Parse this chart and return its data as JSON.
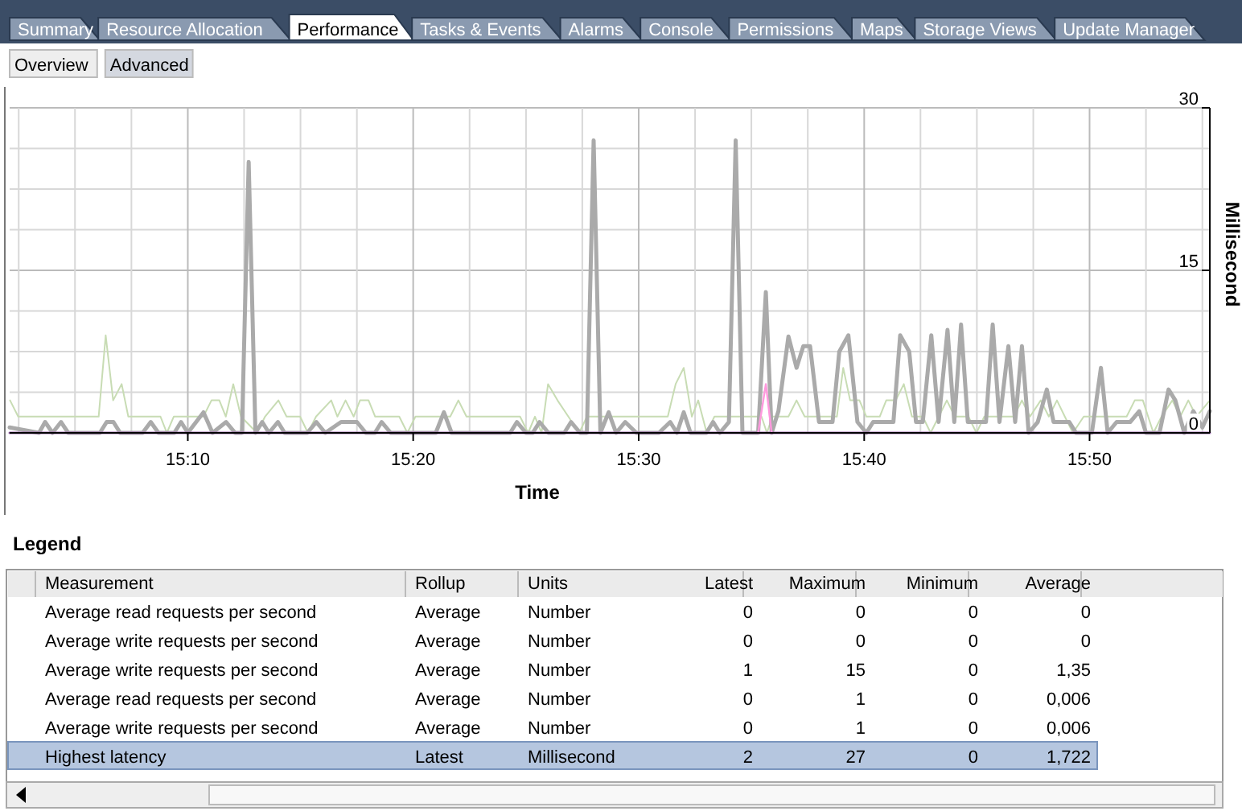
{
  "chart_data": {
    "type": "line",
    "xlabel": "Time",
    "ylabel": "Millisecond",
    "grid": true,
    "marker": "none",
    "line_style": "solid",
    "xlim": [
      15.035,
      15.9222
    ],
    "xticks": [
      {
        "value": 15.0417,
        "label": null
      },
      {
        "value": 15.0833,
        "label": null
      },
      {
        "value": 15.125,
        "label": null
      },
      {
        "value": 15.1667,
        "label": "15:10"
      },
      {
        "value": 15.2083,
        "label": null
      },
      {
        "value": 15.25,
        "label": null
      },
      {
        "value": 15.2917,
        "label": null
      },
      {
        "value": 15.3333,
        "label": "15:20"
      },
      {
        "value": 15.375,
        "label": null
      },
      {
        "value": 15.4167,
        "label": null
      },
      {
        "value": 15.4583,
        "label": null
      },
      {
        "value": 15.5,
        "label": "15:30"
      },
      {
        "value": 15.5417,
        "label": null
      },
      {
        "value": 15.5833,
        "label": null
      },
      {
        "value": 15.625,
        "label": null
      },
      {
        "value": 15.6667,
        "label": "15:40"
      },
      {
        "value": 15.7083,
        "label": null
      },
      {
        "value": 15.75,
        "label": null
      },
      {
        "value": 15.7917,
        "label": null
      },
      {
        "value": 15.8333,
        "label": "15:50"
      },
      {
        "value": 15.875,
        "label": null
      },
      {
        "value": 15.9167,
        "label": null
      }
    ],
    "ylim": [
      0,
      30
    ],
    "yticks": [
      0,
      {
        "value": 3.75,
        "label": null
      },
      {
        "value": 7.5,
        "label": null
      },
      {
        "value": 11.25,
        "label": null
      },
      15,
      {
        "value": 18.75,
        "label": null
      },
      {
        "value": 22.5,
        "label": null
      },
      {
        "value": 26.25,
        "label": null
      },
      30
    ],
    "series": [
      {
        "color": "#c8dcb4",
        "x": [
          15.0353,
          15.0413,
          15.1008,
          15.106,
          15.1115,
          15.1178,
          15.1227,
          15.1465,
          15.1512,
          15.1563,
          15.1782,
          15.1842,
          15.19,
          15.1948,
          15.2003,
          15.206,
          15.2178,
          15.2238,
          15.2337,
          15.2397,
          15.2497,
          15.2555,
          15.2615,
          15.2727,
          15.2773,
          15.2833,
          15.2893,
          15.294,
          15.3003,
          15.3052,
          15.323,
          15.329,
          15.335,
          15.3607,
          15.3667,
          15.3727,
          15.4123,
          15.4183,
          15.4233,
          15.4282,
          15.433,
          15.44,
          15.448,
          15.456,
          15.4618,
          15.5215,
          15.5273,
          15.5333,
          15.5393,
          15.544,
          15.5503,
          15.556,
          15.5908,
          15.5948,
          15.5988,
          15.6107,
          15.6167,
          15.6227,
          15.6465,
          15.6512,
          15.6563,
          15.6632,
          15.6683,
          15.6782,
          15.683,
          15.69,
          15.696,
          15.702,
          15.71,
          15.7158,
          15.7218,
          15.7278,
          15.7337,
          15.7437,
          15.7497,
          15.7555,
          15.7773,
          15.7833,
          15.7893,
          15.7972,
          15.8032,
          15.8092,
          15.815,
          15.821,
          15.829,
          15.8607,
          15.8667,
          15.8727,
          15.8805,
          15.8865,
          15.8945,
          15.9003,
          15.9063,
          15.9123,
          15.9222
        ],
        "values": [
          3,
          1.5,
          1.5,
          9,
          3,
          4.5,
          1.5,
          1.5,
          0,
          1.5,
          1.5,
          3,
          3,
          1.5,
          4.5,
          1.5,
          0,
          1.5,
          3,
          1.5,
          1.5,
          0,
          1.5,
          3,
          1.5,
          3,
          1.5,
          3,
          3,
          1.5,
          1.5,
          0,
          1.5,
          1.5,
          3,
          1.5,
          1.5,
          0,
          1.5,
          0,
          4.5,
          3,
          1.5,
          0,
          1.5,
          1.5,
          4.5,
          6,
          1.5,
          3,
          0,
          1.5,
          1.5,
          0,
          1.5,
          1.5,
          3,
          1.5,
          1.5,
          6,
          3,
          3,
          1.5,
          1.5,
          3,
          3,
          4.5,
          1.5,
          1.5,
          0,
          1.5,
          3,
          1.5,
          1.5,
          0,
          1.5,
          1.5,
          3,
          1.5,
          3,
          1.5,
          3,
          1.5,
          0,
          1.5,
          1.5,
          3,
          3,
          0,
          1.5,
          3,
          1.5,
          3,
          1.5,
          3
        ]
      },
      {
        "color": "#aaaaaa",
        "x": [
          15.035,
          15.0567,
          15.0612,
          15.0667,
          15.073,
          15.0783,
          15.1017,
          15.1067,
          15.1117,
          15.1167,
          15.1333,
          15.1393,
          15.145,
          15.1567,
          15.1617,
          15.1667,
          15.1783,
          15.185,
          15.195,
          15.2017,
          15.2067,
          15.2117,
          15.2167,
          15.2217,
          15.2267,
          15.2333,
          15.2383,
          15.255,
          15.2617,
          15.2683,
          15.28,
          15.2917,
          15.2983,
          15.305,
          15.31,
          15.3167,
          15.35,
          15.356,
          15.3617,
          15.405,
          15.41,
          15.4167,
          15.4217,
          15.4267,
          15.4333,
          15.445,
          15.45,
          15.4567,
          15.4617,
          15.4667,
          15.4717,
          15.4778,
          15.4833,
          15.49,
          15.4983,
          15.515,
          15.5233,
          15.5283,
          15.5333,
          15.5383,
          15.55,
          15.555,
          15.56,
          15.5667,
          15.5717,
          15.5767,
          15.5883,
          15.594,
          15.5983,
          15.6033,
          15.6107,
          15.6167,
          15.6217,
          15.6267,
          15.6333,
          15.6433,
          15.6483,
          15.655,
          15.6617,
          15.6683,
          15.6733,
          15.6883,
          15.6933,
          15.7,
          15.705,
          15.71,
          15.7163,
          15.7217,
          15.7283,
          15.7333,
          15.7383,
          15.7433,
          15.7567,
          15.7617,
          15.7667,
          15.7733,
          15.7783,
          15.7833,
          15.7883,
          15.795,
          15.8017,
          15.8067,
          15.8183,
          15.8233,
          15.835,
          15.8417,
          15.8467,
          15.8533,
          15.8633,
          15.87,
          15.875,
          15.885,
          15.8917,
          15.8967,
          15.9033,
          15.91,
          15.9167,
          15.9222
        ],
        "values": [
          0.5,
          0,
          1,
          0,
          1,
          0,
          0,
          1,
          1,
          0,
          0,
          1,
          0,
          0,
          1,
          0,
          1.9,
          0,
          1,
          0,
          0,
          25,
          0,
          1,
          0,
          1,
          0,
          0,
          1,
          0,
          1,
          1,
          0,
          0,
          1,
          0,
          0,
          1.9,
          0,
          0,
          1,
          0,
          0,
          1,
          0,
          0,
          1,
          0,
          0,
          27,
          0,
          1.9,
          0,
          1,
          0,
          0,
          1,
          0,
          1.9,
          0,
          0,
          1,
          0,
          1,
          27,
          0,
          0,
          13,
          0,
          2,
          8.9,
          6,
          8,
          8,
          1,
          1,
          7.5,
          9,
          1,
          0,
          1,
          1,
          9,
          7.5,
          1,
          1,
          9,
          1,
          9.5,
          1,
          10,
          1,
          1,
          10,
          1,
          8,
          1,
          8,
          0,
          1,
          4,
          1,
          1,
          0,
          0,
          6,
          0,
          1,
          1,
          2,
          0,
          0,
          4,
          3,
          0,
          2,
          0.5,
          2
        ]
      },
      {
        "color": "#9966aa",
        "x": [
          15.035,
          15.9222
        ],
        "values": [
          0,
          0
        ]
      },
      {
        "color": "#ff99dd",
        "x": [
          15.5883,
          15.594,
          15.5983
        ],
        "values": [
          0,
          4.5,
          0
        ]
      }
    ],
    "annotations": [
      "Summary",
      "Resource Allocation",
      "Performance",
      "Tasks & Events",
      "Alarms",
      "Console",
      "Permissions",
      "Maps",
      "Storage Views",
      "Update Manager",
      "Overview",
      "Advanced",
      "Legend",
      "Measurement",
      "Rollup",
      "Units",
      "Latest",
      "Maximum",
      "Minimum",
      "Average",
      "Average read requests per second",
      "Average",
      "Number",
      "0",
      "0",
      "0",
      "0",
      "Average write requests per second",
      "Average",
      "Number",
      "0",
      "0",
      "0",
      "0",
      "Average write requests per second",
      "Average",
      "Number",
      "1",
      "15",
      "0",
      "1,35",
      "Average read requests per second",
      "Average",
      "Number",
      "0",
      "1",
      "0",
      "0,006",
      "Average write requests per second",
      "Average",
      "Number",
      "0",
      "1",
      "0",
      "0,006",
      "Highest latency",
      "Latest",
      "Millisecond",
      "2",
      "27",
      "0",
      "1,722"
    ]
  }
}
